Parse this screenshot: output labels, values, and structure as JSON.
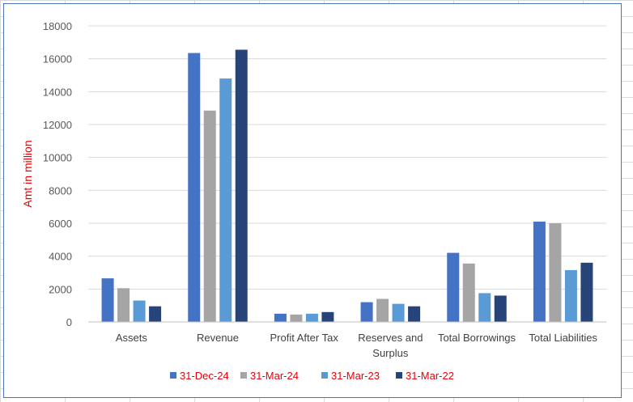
{
  "chart_data": {
    "type": "bar",
    "title": "",
    "xlabel": "",
    "ylabel": "Amt in million",
    "ylim": [
      0,
      18000
    ],
    "yticks": [
      "0",
      "2000",
      "4000",
      "6000",
      "8000",
      "10000",
      "12000",
      "14000",
      "16000",
      "18000"
    ],
    "grid": true,
    "legend_position": "bottom",
    "categories": [
      [
        "Assets"
      ],
      [
        "Revenue"
      ],
      [
        "Profit After Tax"
      ],
      [
        "Reserves and",
        "Surplus"
      ],
      [
        "Total Borrowings"
      ],
      [
        "Total Liabilities"
      ]
    ],
    "series": [
      {
        "name": "31-Dec-24",
        "color": "#4472c4",
        "values": [
          2650,
          16350,
          500,
          1200,
          4200,
          6100
        ]
      },
      {
        "name": "31-Mar-24",
        "color": "#a5a5a5",
        "values": [
          2050,
          12850,
          450,
          1400,
          3550,
          6000
        ]
      },
      {
        "name": "31-Mar-23",
        "color": "#5b9bd5",
        "values": [
          1300,
          14800,
          500,
          1100,
          1750,
          3150
        ]
      },
      {
        "name": "31-Mar-22",
        "color": "#264478",
        "values": [
          950,
          16550,
          600,
          950,
          1600,
          3600
        ]
      }
    ]
  }
}
